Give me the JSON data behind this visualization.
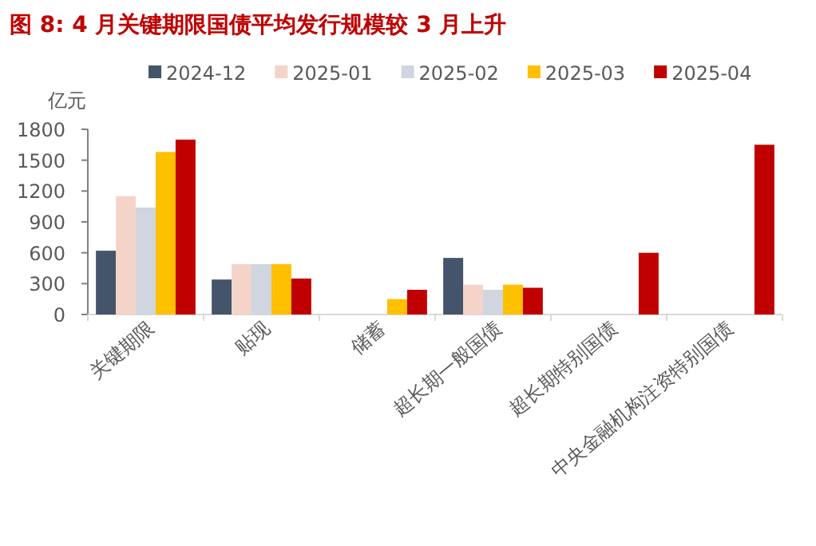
{
  "chart_data": {
    "type": "bar",
    "title": "图 8:  4 月关键期限国债平均发行规模较 3 月上升",
    "ylabel": "亿元",
    "categories": [
      "关键期限",
      "贴现",
      "储蓄",
      "超长期一般国债",
      "超长期特别国债",
      "中央金融机构注资特别国债"
    ],
    "series": [
      {
        "name": "2024-12",
        "color": "#44546a",
        "values": [
          620,
          340,
          null,
          550,
          null,
          null
        ]
      },
      {
        "name": "2025-01",
        "color": "#f4d4c8",
        "values": [
          1150,
          490,
          null,
          290,
          null,
          null
        ]
      },
      {
        "name": "2025-02",
        "color": "#d0d5e0",
        "values": [
          1040,
          490,
          null,
          240,
          null,
          null
        ]
      },
      {
        "name": "2025-03",
        "color": "#ffc000",
        "values": [
          1580,
          490,
          150,
          290,
          null,
          null
        ]
      },
      {
        "name": "2025-04",
        "color": "#c00000",
        "values": [
          1700,
          350,
          240,
          260,
          600,
          1650
        ]
      }
    ],
    "ylim": [
      0,
      1800
    ],
    "yticks": [
      0,
      300,
      600,
      900,
      1200,
      1500,
      1800
    ],
    "legend": "top",
    "grid": false
  }
}
